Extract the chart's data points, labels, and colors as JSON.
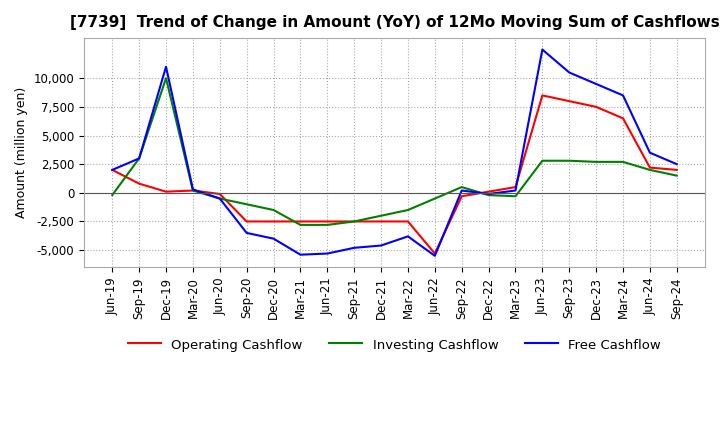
{
  "title": "[7739]  Trend of Change in Amount (YoY) of 12Mo Moving Sum of Cashflows",
  "ylabel": "Amount (million yen)",
  "x_labels": [
    "Jun-19",
    "Sep-19",
    "Dec-19",
    "Mar-20",
    "Jun-20",
    "Sep-20",
    "Dec-20",
    "Mar-21",
    "Jun-21",
    "Sep-21",
    "Dec-21",
    "Mar-22",
    "Jun-22",
    "Sep-22",
    "Dec-22",
    "Mar-23",
    "Jun-23",
    "Sep-23",
    "Dec-23",
    "Mar-24",
    "Jun-24",
    "Sep-24"
  ],
  "operating": [
    2000,
    800,
    100,
    200,
    -100,
    -2500,
    -2500,
    -2500,
    -2500,
    -2500,
    -2500,
    -2500,
    -5300,
    -300,
    100,
    500,
    8500,
    8000,
    7500,
    6500,
    2200,
    2000
  ],
  "investing": [
    -200,
    3000,
    10000,
    200,
    -500,
    -1000,
    -1500,
    -2800,
    -2800,
    -2500,
    -2000,
    -1500,
    -500,
    500,
    -200,
    -300,
    2800,
    2800,
    2700,
    2700,
    2000,
    1500
  ],
  "free": [
    2000,
    3000,
    11000,
    300,
    -500,
    -3500,
    -4000,
    -5400,
    -5300,
    -4800,
    -4600,
    -3800,
    -5500,
    200,
    -100,
    200,
    12500,
    10500,
    9500,
    8500,
    3500,
    2500
  ],
  "operating_color": "#ff0000",
  "investing_color": "#008000",
  "free_color": "#0000ff",
  "ylim": [
    -6500,
    13500
  ],
  "yticks": [
    -5000,
    -2500,
    0,
    2500,
    5000,
    7500,
    10000
  ],
  "grid_color": "#aaaaaa",
  "background_color": "#ffffff",
  "title_fontsize": 11,
  "label_fontsize": 9,
  "tick_fontsize": 8.5
}
